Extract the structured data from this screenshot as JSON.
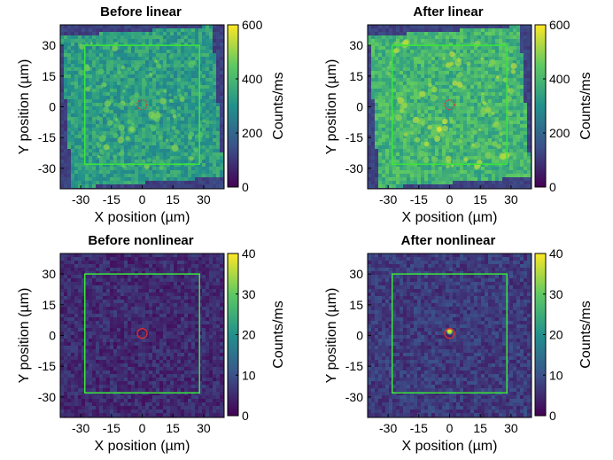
{
  "figure": {
    "colormap_stops": [
      "#440154",
      "#3b528b",
      "#21918c",
      "#5ec962",
      "#fde725"
    ],
    "roi_box_color": "#39e639",
    "marker_color": "#e0302c"
  },
  "chart_data": [
    {
      "type": "heatmap",
      "title": "Before linear",
      "xlabel": "X position (µm)",
      "ylabel": "Y position (µm)",
      "colorbar_label": "Counts/ms",
      "xticks": [
        "-30",
        "-15",
        "0",
        "15",
        "30"
      ],
      "yticks": [
        "30",
        "15",
        "0",
        "-15",
        "-30"
      ],
      "colorbar_ticks": [
        "600",
        "400",
        "200",
        "0"
      ],
      "clim": [
        0,
        600
      ],
      "xlim": [
        -40,
        40
      ],
      "ylim": [
        -40,
        40
      ],
      "sample_region": "rotated square",
      "background_level": 120,
      "sample_level": 330,
      "roi_box": {
        "x": [
          -28,
          28
        ],
        "y": [
          -28,
          30
        ]
      },
      "marker": {
        "x": 0,
        "y": 1,
        "style": "dotted circle"
      },
      "hotspot": {
        "x": -5,
        "y": -11,
        "level": 480
      }
    },
    {
      "type": "heatmap",
      "title": "After linear",
      "xlabel": "X position (µm)",
      "ylabel": "Y position (µm)",
      "colorbar_label": "Counts/ms",
      "xticks": [
        "-30",
        "-15",
        "0",
        "15",
        "30"
      ],
      "yticks": [
        "30",
        "15",
        "0",
        "-15",
        "-30"
      ],
      "colorbar_ticks": [
        "600",
        "400",
        "200",
        "0"
      ],
      "clim": [
        0,
        600
      ],
      "xlim": [
        -40,
        40
      ],
      "ylim": [
        -40,
        40
      ],
      "sample_region": "rotated square",
      "background_level": 120,
      "sample_level": 390,
      "roi_box": {
        "x": [
          -28,
          28
        ],
        "y": [
          -28,
          30
        ]
      },
      "marker": {
        "x": 0,
        "y": 1,
        "style": "dotted circle"
      },
      "hotspot": {
        "x": -5,
        "y": -11,
        "level": 560
      }
    },
    {
      "type": "heatmap",
      "title": "Before nonlinear",
      "xlabel": "X position (µm)",
      "ylabel": "Y position (µm)",
      "colorbar_label": "Counts/ms",
      "xticks": [
        "-30",
        "-15",
        "0",
        "15",
        "30"
      ],
      "yticks": [
        "30",
        "15",
        "0",
        "-15",
        "-30"
      ],
      "colorbar_ticks": [
        "40",
        "30",
        "20",
        "10",
        "0"
      ],
      "clim": [
        0,
        40
      ],
      "xlim": [
        -40,
        40
      ],
      "ylim": [
        -40,
        40
      ],
      "sample_region": "full field",
      "background_level": 4,
      "sample_level": 5,
      "roi_box": {
        "x": [
          -28,
          28
        ],
        "y": [
          -28,
          30
        ]
      },
      "marker": {
        "x": 0,
        "y": 1,
        "style": "solid circle"
      },
      "hotspot": null
    },
    {
      "type": "heatmap",
      "title": "After nonlinear",
      "xlabel": "X position (µm)",
      "ylabel": "Y position (µm)",
      "colorbar_label": "Counts/ms",
      "xticks": [
        "-30",
        "-15",
        "0",
        "15",
        "30"
      ],
      "yticks": [
        "30",
        "15",
        "0",
        "-15",
        "-30"
      ],
      "colorbar_ticks": [
        "40",
        "30",
        "20",
        "10",
        "0"
      ],
      "clim": [
        0,
        40
      ],
      "xlim": [
        -40,
        40
      ],
      "ylim": [
        -40,
        40
      ],
      "sample_region": "full field",
      "background_level": 6,
      "sample_level": 7,
      "roi_box": {
        "x": [
          -28,
          28
        ],
        "y": [
          -28,
          30
        ]
      },
      "marker": {
        "x": 0,
        "y": 1,
        "style": "solid circle"
      },
      "hotspot": {
        "x": 0,
        "y": 2,
        "level": 38
      }
    }
  ]
}
